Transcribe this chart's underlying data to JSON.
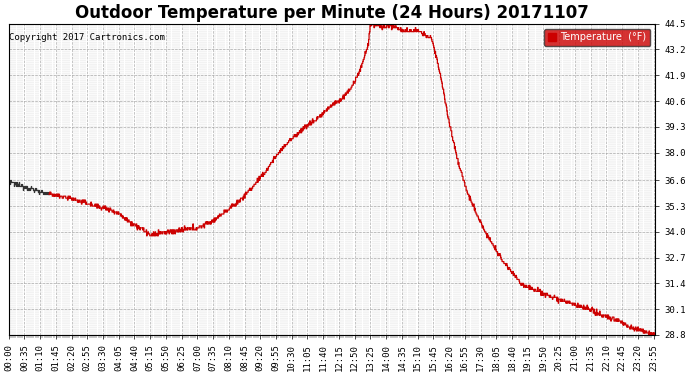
{
  "title": "Outdoor Temperature per Minute (24 Hours) 20171107",
  "copyright": "Copyright 2017 Cartronics.com",
  "legend_label": "Temperature  (°F)",
  "line_color": "#cc0000",
  "dark_line_color": "#333333",
  "legend_bg": "#cc0000",
  "legend_text_color": "#ffffff",
  "background_color": "#ffffff",
  "grid_color": "#999999",
  "ylim": [
    28.8,
    44.5
  ],
  "yticks": [
    28.8,
    30.1,
    31.4,
    32.7,
    34.0,
    35.3,
    36.6,
    38.0,
    39.3,
    40.6,
    41.9,
    43.2,
    44.5
  ],
  "title_fontsize": 12,
  "tick_fontsize": 6.5,
  "total_minutes": 1440,
  "keypoints_t": [
    0,
    30,
    60,
    90,
    120,
    150,
    180,
    210,
    240,
    270,
    300,
    315,
    330,
    360,
    390,
    420,
    450,
    480,
    510,
    540,
    570,
    600,
    620,
    640,
    660,
    680,
    700,
    720,
    740,
    760,
    780,
    800,
    805,
    820,
    840,
    855,
    870,
    890,
    905,
    920,
    940,
    960,
    980,
    1000,
    1020,
    1060,
    1100,
    1140,
    1180,
    1200,
    1240,
    1260,
    1300,
    1320,
    1360,
    1380,
    1410,
    1439
  ],
  "keypoints_v": [
    36.5,
    36.3,
    36.1,
    35.9,
    35.8,
    35.6,
    35.4,
    35.2,
    35.0,
    34.5,
    34.1,
    33.8,
    33.9,
    34.0,
    34.1,
    34.2,
    34.5,
    35.0,
    35.5,
    36.2,
    37.0,
    38.0,
    38.5,
    38.9,
    39.3,
    39.6,
    40.0,
    40.4,
    40.7,
    41.2,
    42.0,
    43.5,
    44.5,
    44.4,
    44.3,
    44.4,
    44.2,
    44.1,
    44.2,
    44.0,
    43.8,
    42.0,
    39.5,
    37.5,
    36.0,
    34.0,
    32.5,
    31.4,
    31.0,
    30.8,
    30.5,
    30.3,
    30.0,
    29.8,
    29.5,
    29.2,
    29.0,
    28.8
  ]
}
